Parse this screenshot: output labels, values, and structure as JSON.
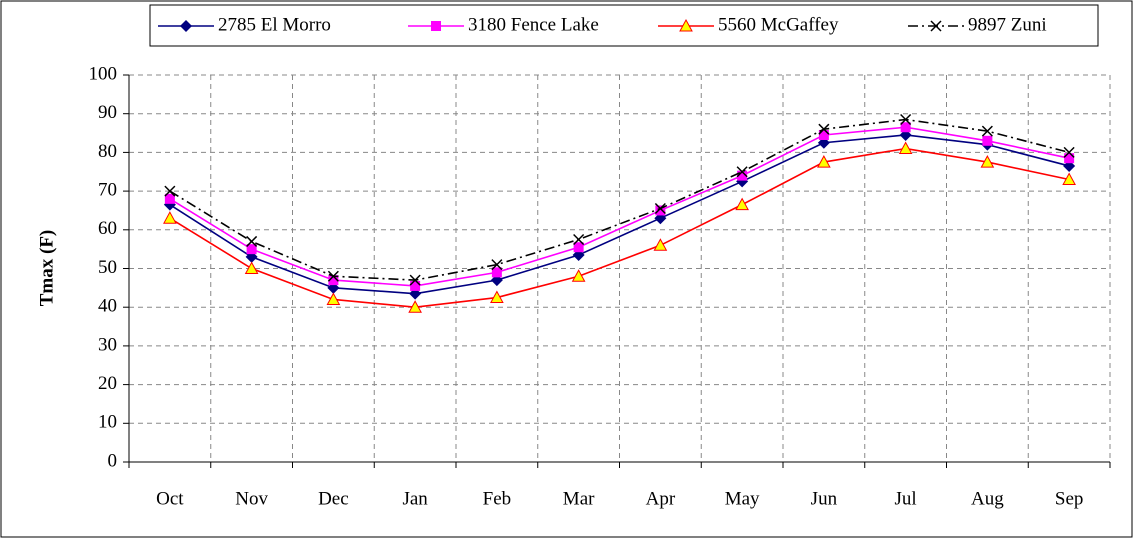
{
  "chart_data": {
    "type": "line",
    "categories": [
      "Oct",
      "Nov",
      "Dec",
      "Jan",
      "Feb",
      "Mar",
      "Apr",
      "May",
      "Jun",
      "Jul",
      "Aug",
      "Sep"
    ],
    "series": [
      {
        "name": "2785 El Morro",
        "color": "#000080",
        "marker": "diamond",
        "dash": "solid",
        "values": [
          66.5,
          53,
          45,
          43.5,
          47,
          53.5,
          63,
          72.5,
          82.5,
          84.5,
          82,
          76.5
        ]
      },
      {
        "name": "3180 Fence Lake",
        "color": "#ff00ff",
        "marker": "square",
        "dash": "solid",
        "values": [
          68,
          55,
          47,
          45.5,
          49,
          55.5,
          65,
          74,
          84.5,
          86.5,
          83,
          78.5
        ]
      },
      {
        "name": "5560 McGaffey",
        "color": "#ff0000",
        "marker": "triangle",
        "dash": "solid",
        "values": [
          63,
          50,
          42,
          40,
          42.5,
          48,
          56,
          66.5,
          77.5,
          81,
          77.5,
          73
        ]
      },
      {
        "name": "9897 Zuni",
        "color": "#000000",
        "marker": "x",
        "dash": "dashdot",
        "values": [
          70,
          57,
          48,
          47,
          51,
          57.5,
          65.5,
          75,
          86,
          88.5,
          85.5,
          80
        ]
      }
    ],
    "y_label": "Tmax (F)",
    "ylim": [
      0,
      100
    ],
    "yticks": [
      0,
      10,
      20,
      30,
      40,
      50,
      60,
      70,
      80,
      90,
      100
    ],
    "grid": true,
    "legend": "top"
  }
}
